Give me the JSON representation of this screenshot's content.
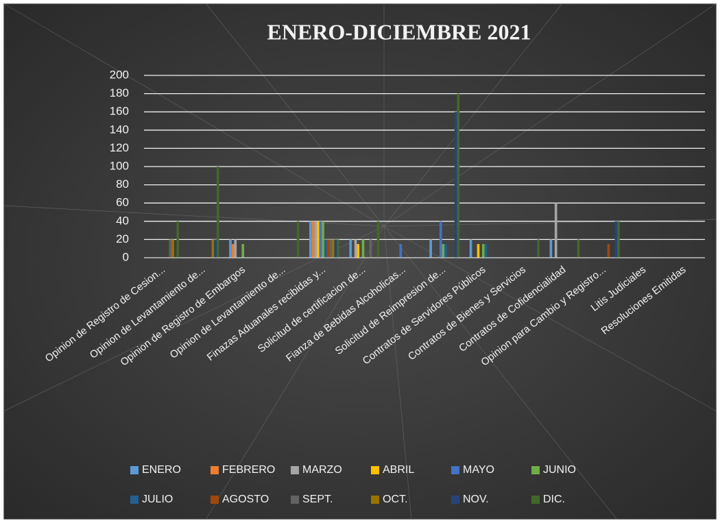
{
  "chart_data": {
    "type": "bar",
    "title": "ENERO-DICIEMBRE 2021",
    "categories": [
      "Opinion de  Registro de Cesion...",
      "Opinion de Levantamiento de...",
      "Opinion de  Registro de Embargos",
      "Opinion de Levantamiento de...",
      "Finazas Aduanales recibidas y...",
      "Solicitud de certificacion de...",
      "Fianza de Bebidas Alcoholicas...",
      "Solicitud de Reimpresion de...",
      "Contratos de Servidores Públicos",
      "Contratos de Bienes y Servicios",
      "Contratos de Cofidencialidad",
      "Opinion para Cambio y Registro...",
      "Litis Judiciales",
      "Resoluciones Emitidas"
    ],
    "series": [
      {
        "name": "ENERO",
        "color": "#5b9bd5",
        "values": [
          0,
          0,
          20,
          0,
          40,
          20,
          0,
          20,
          20,
          0,
          20,
          0,
          0,
          0
        ]
      },
      {
        "name": "FEBRERO",
        "color": "#ed7d31",
        "values": [
          0,
          0,
          15,
          0,
          40,
          0,
          0,
          0,
          0,
          0,
          0,
          0,
          0,
          0
        ]
      },
      {
        "name": "MARZO",
        "color": "#a5a5a5",
        "values": [
          0,
          0,
          20,
          0,
          40,
          20,
          0,
          0,
          0,
          0,
          60,
          0,
          0,
          0
        ]
      },
      {
        "name": "ABRIL",
        "color": "#ffc000",
        "values": [
          0,
          0,
          0,
          0,
          40,
          15,
          0,
          0,
          15,
          0,
          0,
          0,
          0,
          0
        ]
      },
      {
        "name": "MAYO",
        "color": "#4472c4",
        "values": [
          0,
          0,
          0,
          0,
          40,
          0,
          15,
          40,
          0,
          0,
          0,
          0,
          0,
          0
        ]
      },
      {
        "name": "JUNIO",
        "color": "#70ad47",
        "values": [
          0,
          0,
          15,
          0,
          40,
          20,
          0,
          15,
          15,
          0,
          0,
          0,
          0,
          0
        ]
      },
      {
        "name": "JULIO",
        "color": "#255e91",
        "values": [
          0,
          0,
          0,
          0,
          20,
          0,
          0,
          15,
          15,
          0,
          0,
          0,
          0,
          0
        ]
      },
      {
        "name": "AGOSTO",
        "color": "#9e480e",
        "values": [
          0,
          0,
          0,
          0,
          20,
          0,
          0,
          0,
          0,
          0,
          0,
          15,
          0,
          0
        ]
      },
      {
        "name": "SEPT.",
        "color": "#636363",
        "values": [
          20,
          0,
          0,
          0,
          20,
          20,
          0,
          0,
          0,
          0,
          0,
          0,
          0,
          0
        ]
      },
      {
        "name": "OCT.",
        "color": "#997300",
        "values": [
          20,
          20,
          0,
          0,
          20,
          0,
          0,
          0,
          0,
          0,
          0,
          0,
          0,
          0
        ]
      },
      {
        "name": "NOV.",
        "color": "#264478",
        "values": [
          0,
          20,
          0,
          0,
          20,
          0,
          0,
          160,
          0,
          0,
          0,
          40,
          0,
          0
        ]
      },
      {
        "name": "DIC.",
        "color": "#43682b",
        "values": [
          40,
          100,
          0,
          40,
          20,
          40,
          0,
          180,
          0,
          20,
          20,
          40,
          0,
          0
        ]
      }
    ],
    "ylim": [
      0,
      200
    ],
    "yticks": [
      0,
      20,
      40,
      60,
      80,
      100,
      120,
      140,
      160,
      180,
      200
    ],
    "grid": true
  }
}
